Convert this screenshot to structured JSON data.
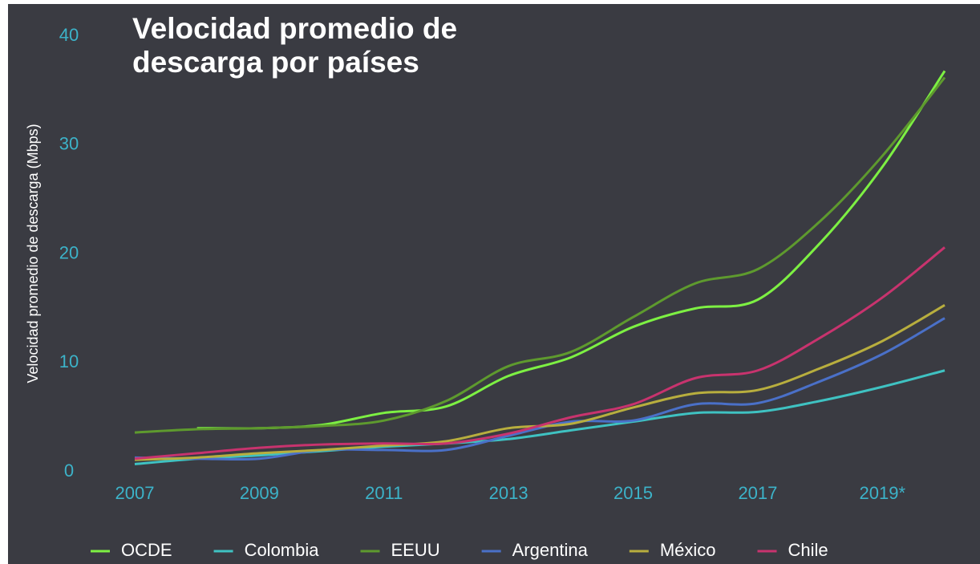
{
  "chart_data": {
    "type": "line",
    "title": "Velocidad promedio de descarga por países",
    "y_label": "Velocidad promedio de descarga (Mbps)",
    "x": [
      2007,
      2008,
      2009,
      2010,
      2011,
      2012,
      2013,
      2014,
      2015,
      2016,
      2017,
      2018,
      2019,
      2020
    ],
    "xlim": [
      2007,
      2020
    ],
    "xticks": [
      2007,
      2009,
      2011,
      2013,
      2015,
      2017,
      {
        "value": 2019,
        "label": "2019*"
      }
    ],
    "ylim": [
      0,
      40
    ],
    "yticks": [
      0,
      10,
      20,
      30,
      40
    ],
    "legend": "bottom",
    "series": [
      {
        "name": "OCDE",
        "color": "#7df043",
        "values": [
          null,
          4.0,
          4.0,
          4.3,
          5.4,
          6.0,
          8.8,
          10.5,
          13.3,
          15.0,
          15.8,
          21.0,
          28.0,
          36.8
        ]
      },
      {
        "name": "Colombia",
        "color": "#3fc2c2",
        "values": [
          0.7,
          1.2,
          1.5,
          1.9,
          2.3,
          2.6,
          3.0,
          3.8,
          4.6,
          5.4,
          5.5,
          6.5,
          7.8,
          9.3
        ]
      },
      {
        "name": "EEUU",
        "color": "#5e9a2e",
        "values": [
          3.6,
          3.9,
          4.0,
          4.2,
          4.7,
          6.5,
          9.7,
          11.0,
          14.2,
          17.3,
          18.6,
          23.0,
          29.0,
          36.2
        ]
      },
      {
        "name": "Argentina",
        "color": "#4a70c8",
        "values": [
          1.3,
          1.2,
          1.2,
          2.0,
          2.0,
          2.0,
          3.3,
          4.6,
          4.7,
          6.2,
          6.3,
          8.3,
          10.8,
          14.1
        ]
      },
      {
        "name": "México",
        "color": "#b8ae3e",
        "values": [
          1.1,
          1.3,
          1.7,
          2.0,
          2.4,
          2.8,
          4.0,
          4.4,
          5.9,
          7.2,
          7.5,
          9.5,
          12.0,
          15.3
        ]
      },
      {
        "name": "Chile",
        "color": "#c8336e",
        "values": [
          1.2,
          1.7,
          2.2,
          2.5,
          2.6,
          2.6,
          3.5,
          5.0,
          6.2,
          8.6,
          9.3,
          12.3,
          16.0,
          20.6
        ]
      }
    ]
  }
}
